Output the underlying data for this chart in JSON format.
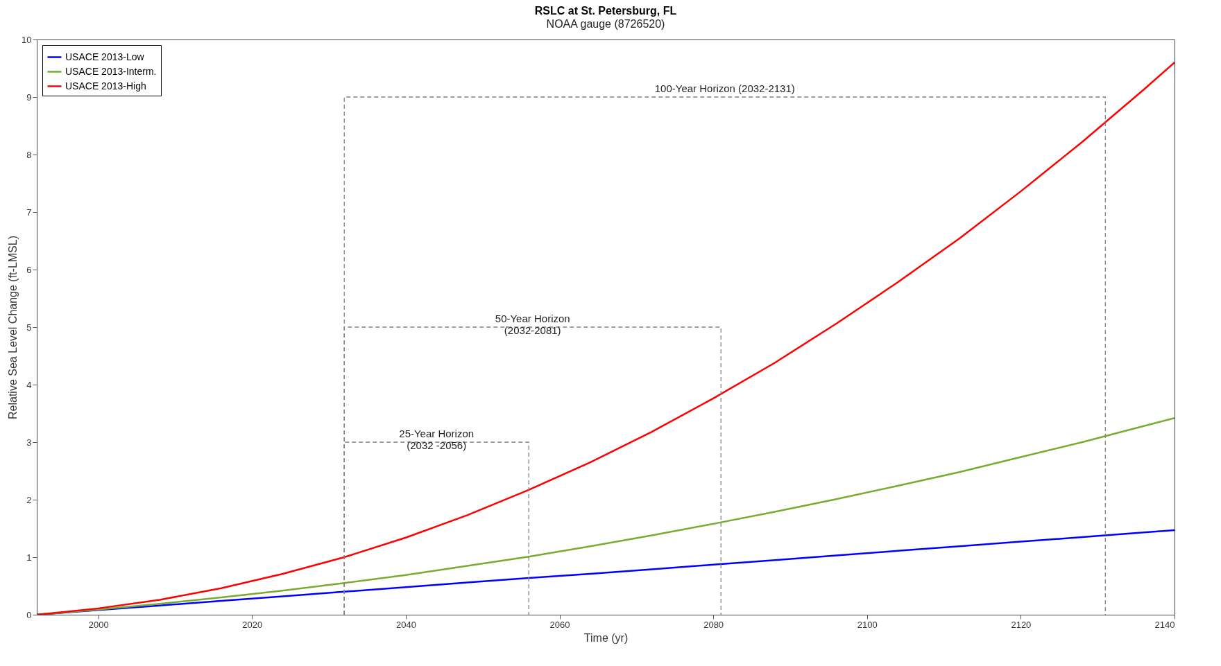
{
  "chart_data": {
    "type": "line",
    "title": "RSLC at St. Petersburg, FL",
    "subtitle": "NOAA gauge (8726520)",
    "xlabel": "Time (yr)",
    "ylabel": "Relative Sea Level Change (ft-LMSL)",
    "x": [
      1992,
      2000,
      2008,
      2016,
      2024,
      2032,
      2040,
      2048,
      2056,
      2064,
      2072,
      2080,
      2088,
      2096,
      2104,
      2112,
      2120,
      2128,
      2136,
      2140
    ],
    "series": [
      {
        "name": "USACE 2013-Low",
        "color": "#0000ff",
        "line_style": "solid",
        "values": [
          0,
          0.08,
          0.16,
          0.24,
          0.32,
          0.4,
          0.48,
          0.56,
          0.64,
          0.71,
          0.79,
          0.87,
          0.95,
          1.03,
          1.11,
          1.19,
          1.27,
          1.35,
          1.43,
          1.47
        ]
      },
      {
        "name": "USACE 2013-Interm.",
        "color": "#77ac30",
        "line_style": "solid",
        "values": [
          0,
          0.09,
          0.19,
          0.3,
          0.42,
          0.55,
          0.69,
          0.85,
          1.01,
          1.19,
          1.38,
          1.58,
          1.79,
          2.01,
          2.24,
          2.48,
          2.74,
          3.0,
          3.28,
          3.42
        ]
      },
      {
        "name": "USACE 2013-High",
        "color": "#ff0000",
        "line_style": "solid",
        "values": [
          0,
          0.11,
          0.26,
          0.46,
          0.71,
          1.0,
          1.34,
          1.73,
          2.17,
          2.65,
          3.18,
          3.76,
          4.38,
          5.06,
          5.78,
          6.54,
          7.36,
          8.22,
          9.13,
          9.6
        ]
      },
      {
        "color": "#808080",
        "line_style": "dashed",
        "x": [
          2032,
          2032,
          2056,
          2056
        ],
        "values": [
          0,
          3,
          3,
          0
        ]
      },
      {
        "color": "#808080",
        "line_style": "dashed",
        "x": [
          2032,
          2032,
          2081,
          2081
        ],
        "values": [
          0,
          5,
          5,
          0
        ]
      },
      {
        "color": "#808080",
        "line_style": "dashed",
        "x": [
          2032,
          2032,
          2131,
          2131
        ],
        "values": [
          0,
          9,
          9,
          0
        ]
      }
    ],
    "annotations": [
      {
        "text": "25-Year Horizon\n(2032 -2056)",
        "x": 2044,
        "y": 3
      },
      {
        "text": "50-Year Horizon\n(2032-2081)",
        "x": 2056.5,
        "y": 5
      },
      {
        "text": "100-Year Horizon (2032-2131)",
        "x": 2081.5,
        "y": 9
      }
    ],
    "xlim": [
      1992,
      2140
    ],
    "xticks": [
      2000,
      2020,
      2040,
      2060,
      2080,
      2100,
      2120,
      2140
    ],
    "ylim": [
      0,
      10
    ],
    "yticks": [
      0,
      1,
      2,
      3,
      4,
      5,
      6,
      7,
      8,
      9,
      10
    ],
    "grid": false,
    "legend": "top left",
    "marker": "none"
  }
}
